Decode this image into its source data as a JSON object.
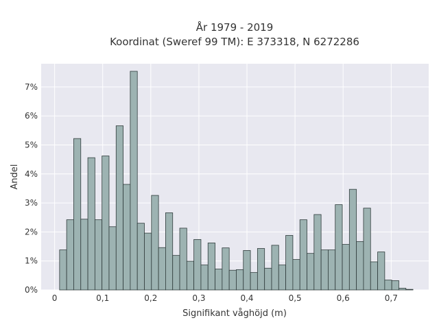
{
  "chart_data": {
    "type": "bar",
    "title": "År 1979 - 2019",
    "subtitle": "Koordinat (Sweref 99 TM): E 373318, N 6272286",
    "xlabel": "Signifikant våghöjd (m)",
    "ylabel": "Andel",
    "xlim": [
      -0.028,
      0.778
    ],
    "ylim": [
      0,
      7.8
    ],
    "x_ticks": [
      0,
      0.1,
      0.2,
      0.3,
      0.4,
      0.5,
      0.6,
      0.7
    ],
    "x_tick_labels": [
      "0",
      "0,1",
      "0,2",
      "0,3",
      "0,4",
      "0,5",
      "0,6",
      "0,7"
    ],
    "y_ticks": [
      0,
      1,
      2,
      3,
      4,
      5,
      6,
      7
    ],
    "y_tick_labels": [
      "0%",
      "1%",
      "2%",
      "3%",
      "4%",
      "5%",
      "6%",
      "7%"
    ],
    "bin_width": 0.0147,
    "bin_start": 0.0103,
    "values": [
      1.38,
      2.42,
      5.22,
      2.44,
      4.56,
      2.42,
      4.62,
      2.18,
      5.66,
      3.64,
      7.54,
      2.3,
      1.96,
      3.26,
      1.46,
      2.66,
      1.19,
      2.13,
      0.99,
      1.74,
      0.86,
      1.62,
      0.72,
      1.45,
      0.68,
      0.7,
      1.36,
      0.6,
      1.43,
      0.75,
      1.54,
      0.86,
      1.88,
      1.05,
      2.42,
      1.26,
      2.6,
      1.38,
      1.38,
      2.94,
      1.57,
      3.47,
      1.67,
      2.82,
      0.97,
      1.31,
      0.34,
      0.32,
      0.06,
      0.02
    ],
    "grid": true,
    "colors": {
      "bar_fill": "#9db3b2",
      "bar_edge": "#2f3b3b",
      "plot_bg": "#e8e8f0",
      "grid": "#ffffff"
    }
  }
}
